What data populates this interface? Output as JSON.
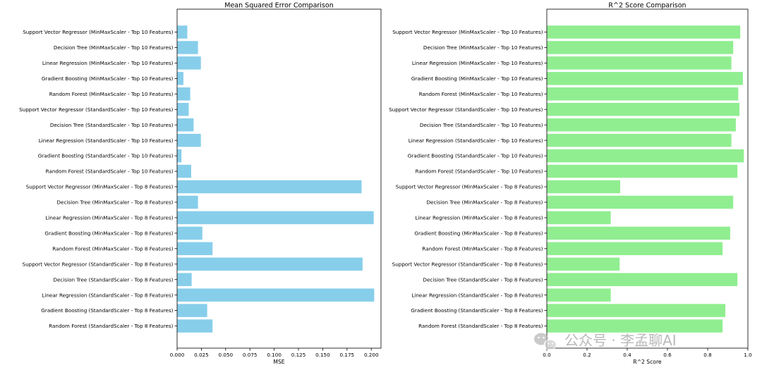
{
  "chart_data": [
    {
      "type": "bar",
      "orientation": "horizontal",
      "title": "Mean Squared Error Comparison",
      "xlabel": "MSE",
      "ylabel": "",
      "xlim": [
        0,
        0.21
      ],
      "xticks": [
        "0.000",
        "0.025",
        "0.050",
        "0.075",
        "0.100",
        "0.125",
        "0.150",
        "0.175",
        "0.200"
      ],
      "color": "#87ceeb",
      "categories": [
        "Support Vector Regressor (MinMaxScaler - Top 10 Features)",
        "Decision Tree (MinMaxScaler - Top 10 Features)",
        "Linear Regression (MinMaxScaler - Top 10 Features)",
        "Gradient Boosting (MinMaxScaler - Top 10 Features)",
        "Random Forest (MinMaxScaler - Top 10 Features)",
        "Support Vector Regressor (StandardScaler - Top 10 Features)",
        "Decision Tree (StandardScaler - Top 10 Features)",
        "Linear Regression (StandardScaler - Top 10 Features)",
        "Gradient Boosting (StandardScaler - Top 10 Features)",
        "Random Forest (StandardScaler - Top 10 Features)",
        "Support Vector Regressor (MinMaxScaler - Top 8 Features)",
        "Decision Tree (MinMaxScaler - Top 8 Features)",
        "Linear Regression (MinMaxScaler - Top 8 Features)",
        "Gradient Boosting (MinMaxScaler - Top 8 Features)",
        "Random Forest (MinMaxScaler - Top 8 Features)",
        "Support Vector Regressor (StandardScaler - Top 8 Features)",
        "Decision Tree (StandardScaler - Top 8 Features)",
        "Linear Regression (StandardScaler - Top 8 Features)",
        "Gradient Boosting (StandardScaler - Top 8 Features)",
        "Random Forest (StandardScaler - Top 8 Features)"
      ],
      "values": [
        0.0105,
        0.0215,
        0.0245,
        0.0065,
        0.0135,
        0.012,
        0.017,
        0.0245,
        0.0045,
        0.0145,
        0.19,
        0.0215,
        0.2025,
        0.026,
        0.0365,
        0.191,
        0.015,
        0.203,
        0.031,
        0.0365
      ]
    },
    {
      "type": "bar",
      "orientation": "horizontal",
      "title": "R^2 Score Comparison",
      "xlabel": "R^2 Score",
      "ylabel": "",
      "xlim": [
        0,
        1.0
      ],
      "xticks": [
        "0.0",
        "0.2",
        "0.4",
        "0.6",
        "0.8",
        "1.0"
      ],
      "color": "#90ee90",
      "categories": [
        "Support Vector Regressor (MinMaxScaler - Top 10 Features)",
        "Decision Tree (MinMaxScaler - Top 10 Features)",
        "Linear Regression (MinMaxScaler - Top 10 Features)",
        "Gradient Boosting (MinMaxScaler - Top 10 Features)",
        "Random Forest (MinMaxScaler - Top 10 Features)",
        "Support Vector Regressor (StandardScaler - Top 10 Features)",
        "Decision Tree (StandardScaler - Top 10 Features)",
        "Linear Regression (StandardScaler - Top 10 Features)",
        "Gradient Boosting (StandardScaler - Top 10 Features)",
        "Random Forest (StandardScaler - Top 10 Features)",
        "Support Vector Regressor (MinMaxScaler - Top 8 Features)",
        "Decision Tree (MinMaxScaler - Top 8 Features)",
        "Linear Regression (MinMaxScaler - Top 8 Features)",
        "Gradient Boosting (MinMaxScaler - Top 8 Features)",
        "Random Forest (MinMaxScaler - Top 8 Features)",
        "Support Vector Regressor (StandardScaler - Top 8 Features)",
        "Decision Tree (StandardScaler - Top 8 Features)",
        "Linear Regression (StandardScaler - Top 8 Features)",
        "Gradient Boosting (StandardScaler - Top 8 Features)",
        "Random Forest (StandardScaler - Top 8 Features)"
      ],
      "values": [
        0.962,
        0.927,
        0.918,
        0.975,
        0.952,
        0.958,
        0.94,
        0.918,
        0.98,
        0.948,
        0.365,
        0.927,
        0.318,
        0.912,
        0.874,
        0.362,
        0.948,
        0.318,
        0.888,
        0.874
      ]
    }
  ],
  "watermark": {
    "text": "公众号 · 李孟聊AI",
    "icon": "wechat-icon"
  }
}
